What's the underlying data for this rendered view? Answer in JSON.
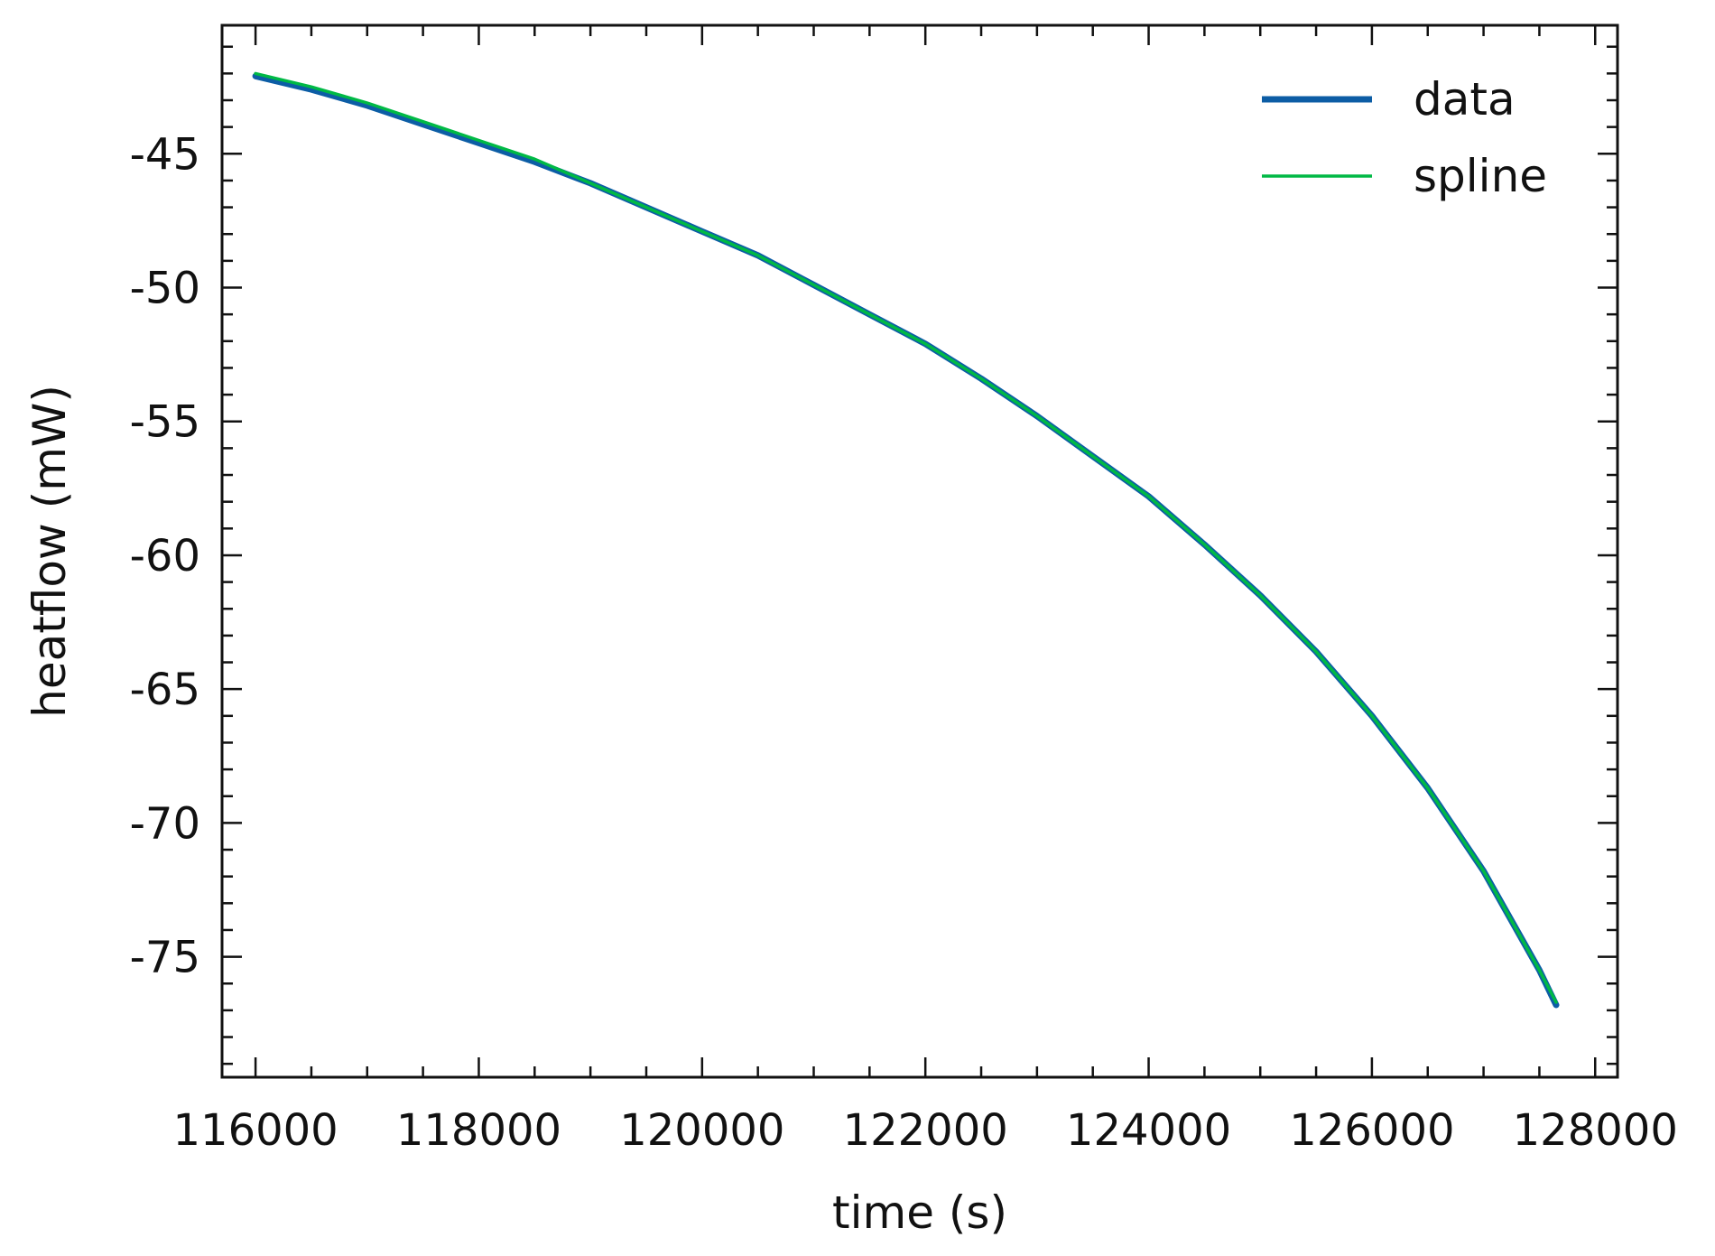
{
  "chart_data": {
    "type": "line",
    "title": "",
    "xlabel": "time (s)",
    "ylabel": "heatflow (mW)",
    "xlim": [
      115700,
      128200
    ],
    "ylim": [
      -79.5,
      -40.2
    ],
    "xticks": [
      116000,
      118000,
      120000,
      122000,
      124000,
      126000,
      128000
    ],
    "xtick_labels": [
      "116000",
      "118000",
      "120000",
      "122000",
      "124000",
      "126000",
      "128000"
    ],
    "yticks": [
      -45,
      -50,
      -55,
      -60,
      -65,
      -70,
      -75
    ],
    "ytick_labels": [
      "-45",
      "-50",
      "-55",
      "-60",
      "-65",
      "-70",
      "-75"
    ],
    "x_minor_step": 500,
    "y_minor_step": 1,
    "grid": false,
    "legend": {
      "position": "top-right"
    },
    "series": [
      {
        "name": "data",
        "color": "#0C5DA5",
        "x": [
          116000,
          116500,
          117000,
          117500,
          118000,
          118500,
          119000,
          119500,
          120000,
          120500,
          121000,
          121500,
          122000,
          122500,
          123000,
          123500,
          124000,
          124500,
          125000,
          125500,
          126000,
          126500,
          127000,
          127500,
          127650
        ],
        "y": [
          -42.1,
          -42.6,
          -43.2,
          -43.9,
          -44.6,
          -45.3,
          -46.1,
          -47.0,
          -47.9,
          -48.8,
          -49.9,
          -51.0,
          -52.1,
          -53.4,
          -54.8,
          -56.3,
          -57.8,
          -59.6,
          -61.5,
          -63.6,
          -66.0,
          -68.7,
          -71.8,
          -75.5,
          -76.8
        ]
      },
      {
        "name": "spline",
        "color": "#00B945",
        "x": [
          116000,
          116500,
          117000,
          117500,
          118000,
          118500,
          119000,
          119500,
          120000,
          120500,
          121000,
          121500,
          122000,
          122500,
          123000,
          123500,
          124000,
          124500,
          125000,
          125500,
          126000,
          126500,
          127000,
          127500,
          127650
        ],
        "y": [
          -42.0,
          -42.5,
          -43.1,
          -43.8,
          -44.5,
          -45.2,
          -46.1,
          -47.0,
          -47.9,
          -48.8,
          -49.9,
          -51.0,
          -52.1,
          -53.4,
          -54.8,
          -56.3,
          -57.8,
          -59.6,
          -61.5,
          -63.6,
          -66.0,
          -68.7,
          -71.8,
          -75.5,
          -76.7
        ]
      }
    ]
  }
}
